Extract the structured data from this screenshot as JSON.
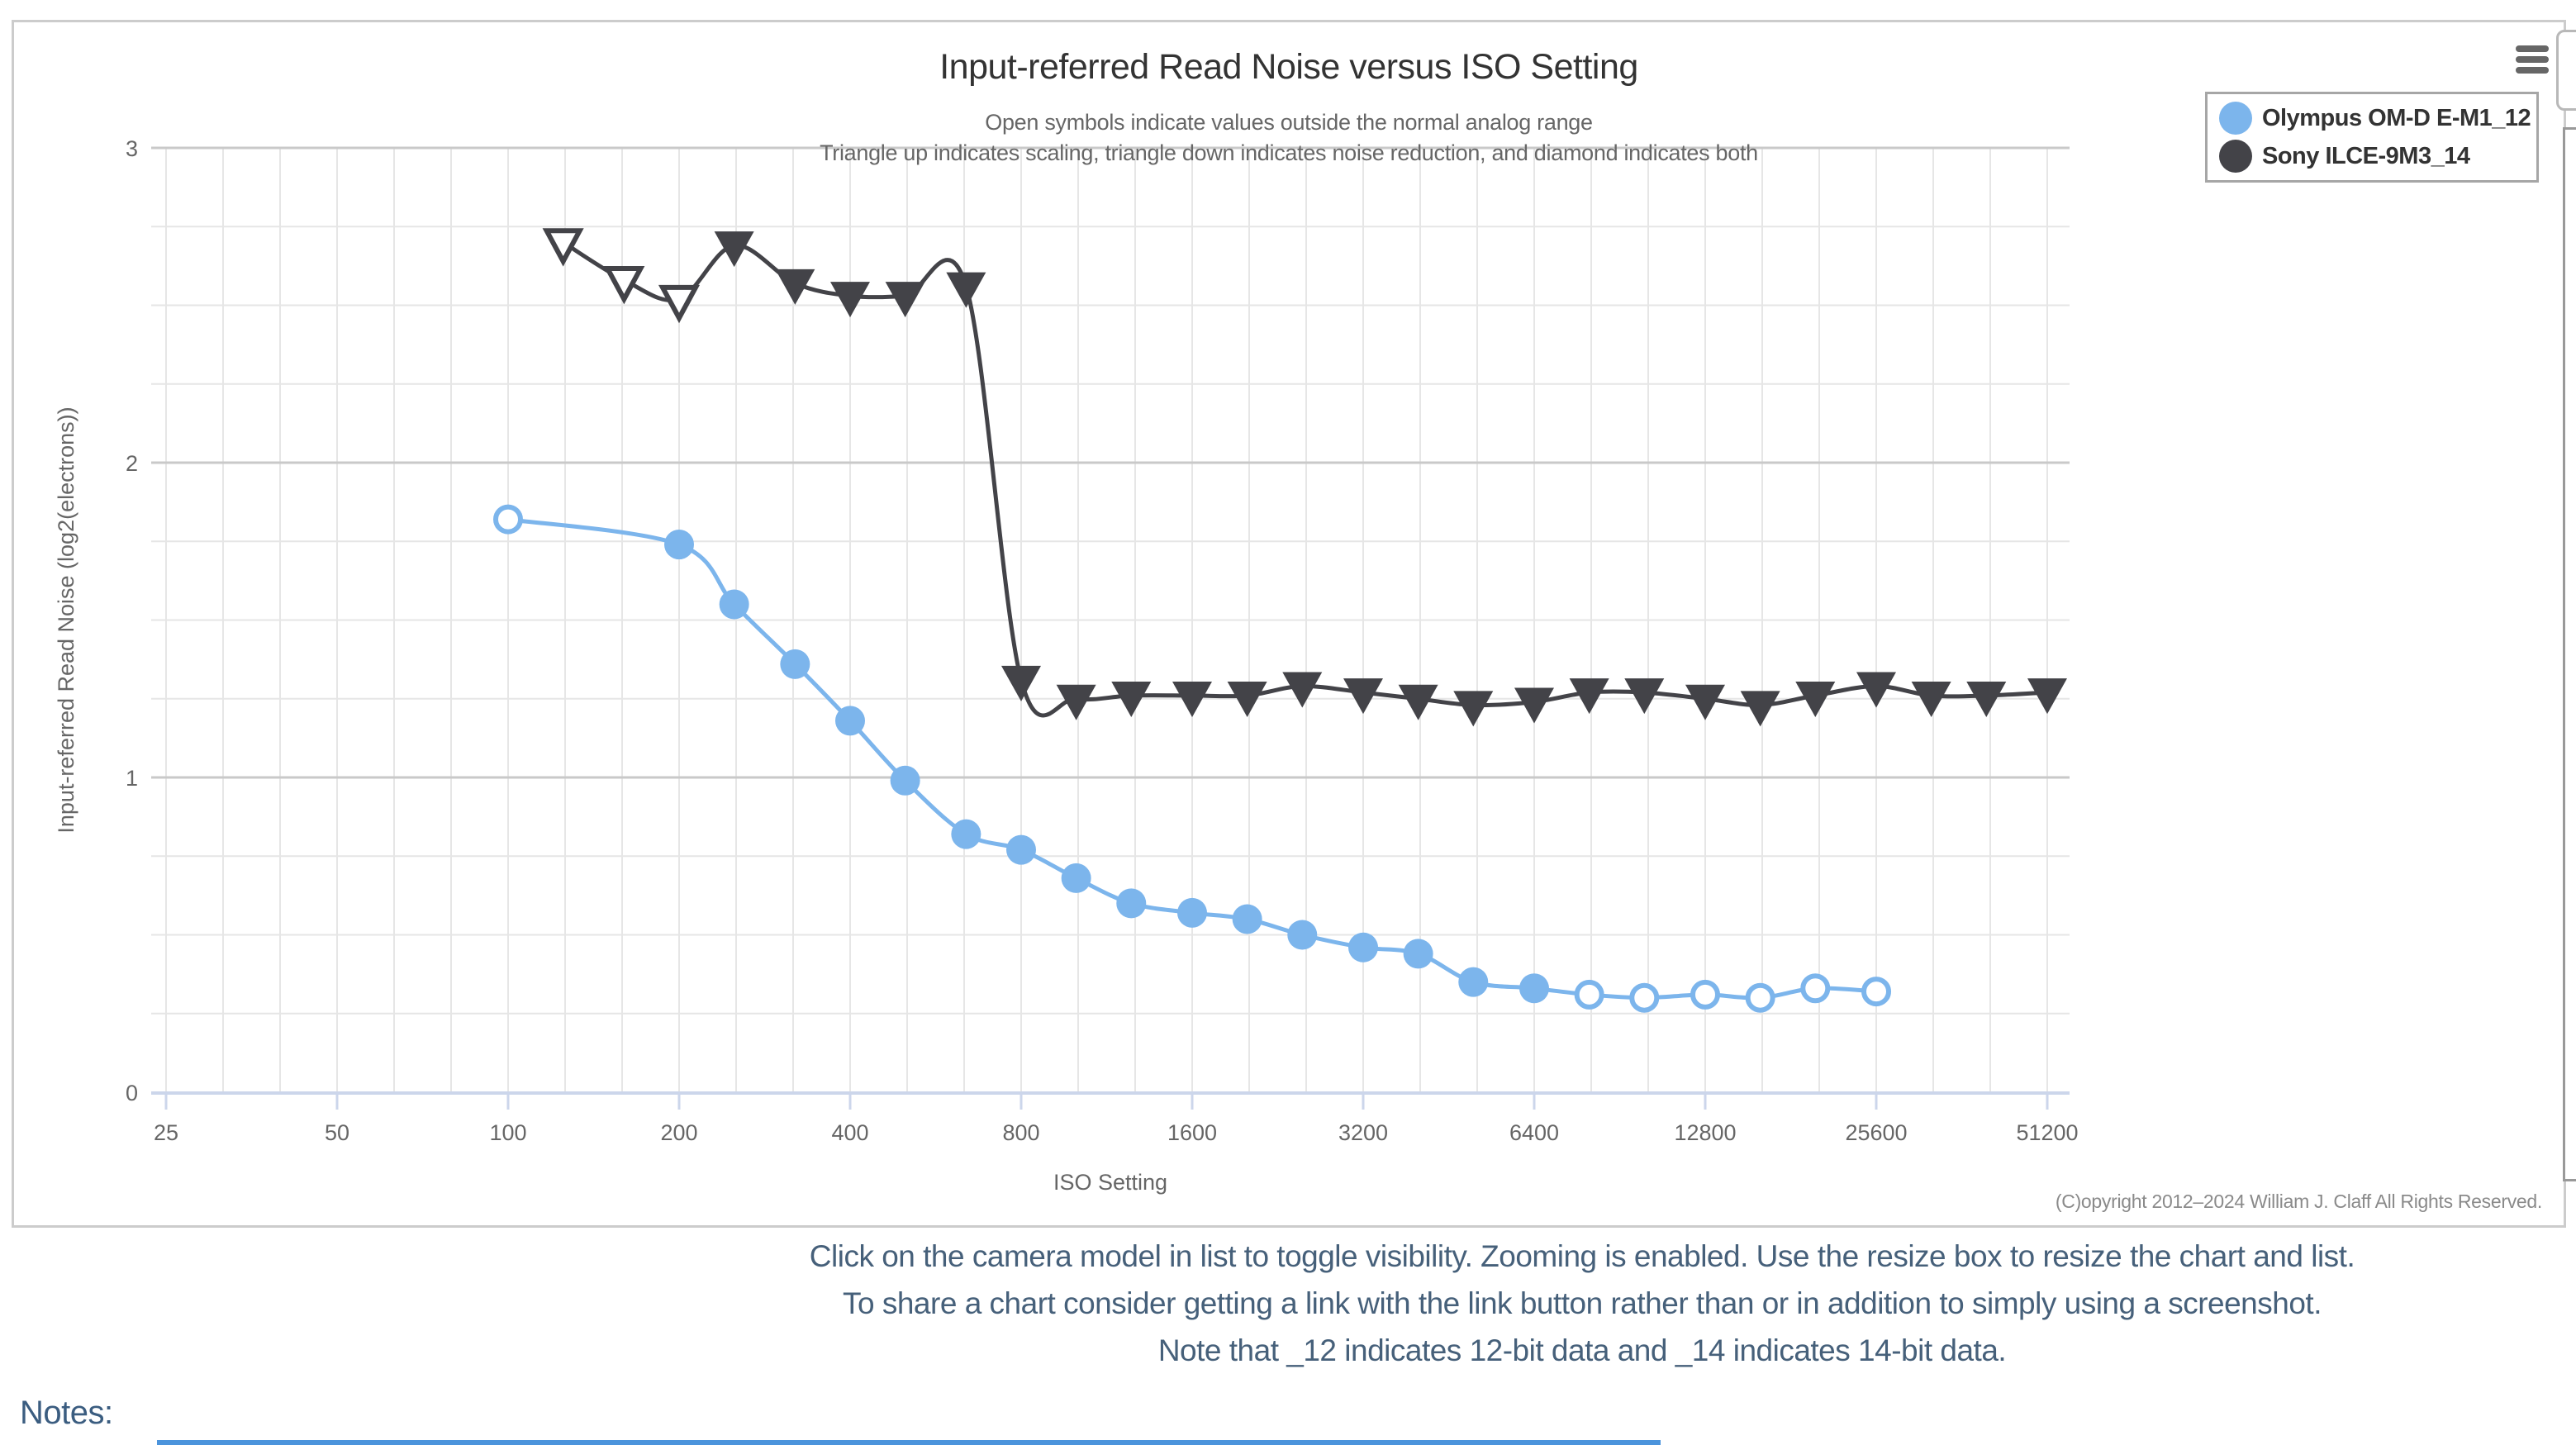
{
  "chart": {
    "title": "Input-referred Read Noise versus ISO Setting",
    "subtitle_line1": "Open symbols indicate values outside the normal analog range",
    "subtitle_line2": "Triangle up indicates scaling, triangle down indicates noise reduction, and diamond indicates both",
    "x_axis_title": "ISO Setting",
    "y_axis_title": "Input-referred Read Noise (log2(electrons))",
    "copyright": "(C)opyright 2012–2024 William J. Claff All Rights Reserved.",
    "menu_icon": "hamburger-icon",
    "legend": [
      {
        "label": "Olympus OM-D E-M1_12",
        "color": "#7cb5ec"
      },
      {
        "label": "Sony ILCE-9M3_14",
        "color": "#434348"
      }
    ]
  },
  "footer": {
    "line1": "Click on the camera model in list to toggle visibility. Zooming is enabled. Use the resize box to resize the chart and list.",
    "line2": "To share a chart consider getting a link with the link button rather than or in addition to simply using a screenshot.",
    "line3": "Note that _12 indicates 12-bit data and _14 indicates 14-bit data."
  },
  "notes": {
    "label": "Notes:"
  },
  "chart_data": {
    "type": "line",
    "x_scale": "log2",
    "title": "Input-referred Read Noise versus ISO Setting",
    "xlabel": "ISO Setting",
    "ylabel": "Input-referred Read Noise (log2(electrons))",
    "xlim_iso": [
      23.5,
      56000
    ],
    "ylim": [
      0,
      3
    ],
    "x_tick_values": [
      25,
      50,
      100,
      200,
      400,
      800,
      1600,
      3200,
      6400,
      12800,
      25600,
      51200
    ],
    "x_tick_labels": [
      "25",
      "50",
      "100",
      "200",
      "400",
      "800",
      "1600",
      "3200",
      "6400",
      "12800",
      "25600",
      "51200"
    ],
    "y_ticks": [
      0,
      1,
      2,
      3
    ],
    "grid": {
      "minor_x_per_octave": 3,
      "minor_y_step": 0.25,
      "grid_on": true
    },
    "legend_position": "top-right",
    "open_symbol_meaning": "value outside the normal analog range",
    "point_format": "[iso, log2_read_noise_electrons, open_symbol_flag]",
    "series": [
      {
        "name": "Olympus OM-D E-M1_12",
        "color": "#7cb5ec",
        "marker": "circle",
        "points": [
          [
            100,
            1.82,
            1
          ],
          [
            200,
            1.74,
            0
          ],
          [
            250,
            1.55,
            0
          ],
          [
            320,
            1.36,
            0
          ],
          [
            400,
            1.18,
            0
          ],
          [
            500,
            0.99,
            0
          ],
          [
            640,
            0.82,
            0
          ],
          [
            800,
            0.77,
            0
          ],
          [
            1000,
            0.68,
            0
          ],
          [
            1250,
            0.6,
            0
          ],
          [
            1600,
            0.57,
            0
          ],
          [
            2000,
            0.55,
            0
          ],
          [
            2500,
            0.5,
            0
          ],
          [
            3200,
            0.46,
            0
          ],
          [
            4000,
            0.44,
            0
          ],
          [
            5000,
            0.35,
            0
          ],
          [
            6400,
            0.33,
            0
          ],
          [
            8000,
            0.31,
            1
          ],
          [
            10000,
            0.3,
            1
          ],
          [
            12800,
            0.31,
            1
          ],
          [
            16000,
            0.3,
            1
          ],
          [
            20000,
            0.33,
            1
          ],
          [
            25600,
            0.32,
            1
          ]
        ]
      },
      {
        "name": "Sony ILCE-9M3_14",
        "color": "#434348",
        "marker": "triangle-down",
        "points": [
          [
            125,
            2.7,
            1
          ],
          [
            160,
            2.58,
            1
          ],
          [
            200,
            2.52,
            1
          ],
          [
            250,
            2.69,
            0
          ],
          [
            320,
            2.57,
            0
          ],
          [
            400,
            2.53,
            0
          ],
          [
            500,
            2.53,
            0
          ],
          [
            640,
            2.56,
            0
          ],
          [
            800,
            1.31,
            0
          ],
          [
            1000,
            1.25,
            0
          ],
          [
            1250,
            1.26,
            0
          ],
          [
            1600,
            1.26,
            0
          ],
          [
            2000,
            1.26,
            0
          ],
          [
            2500,
            1.29,
            0
          ],
          [
            3200,
            1.27,
            0
          ],
          [
            4000,
            1.25,
            0
          ],
          [
            5000,
            1.23,
            0
          ],
          [
            6400,
            1.24,
            0
          ],
          [
            8000,
            1.27,
            0
          ],
          [
            10000,
            1.27,
            0
          ],
          [
            12800,
            1.25,
            0
          ],
          [
            16000,
            1.23,
            0
          ],
          [
            20000,
            1.26,
            0
          ],
          [
            25600,
            1.29,
            0
          ],
          [
            32000,
            1.26,
            0
          ],
          [
            40000,
            1.26,
            0
          ],
          [
            51200,
            1.27,
            0
          ]
        ]
      }
    ]
  }
}
